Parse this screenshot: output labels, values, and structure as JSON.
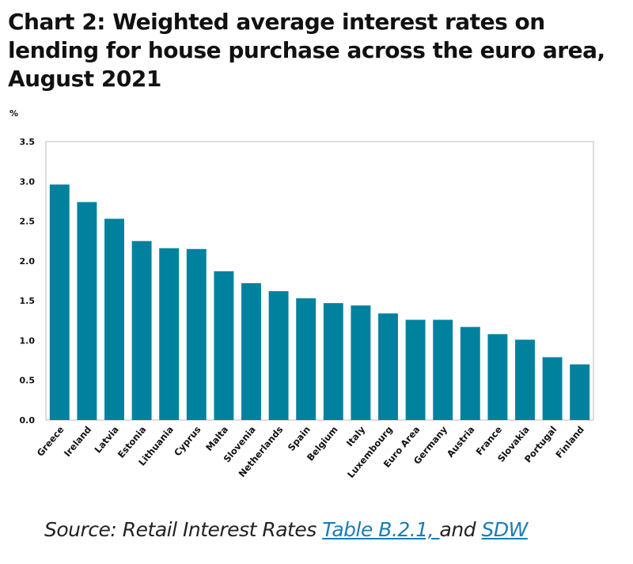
{
  "title": "Chart 2: Weighted average interest rates on lending for house purchase across the euro area, August 2021",
  "source": {
    "prefix": "Source: Retail Interest Rates ",
    "link1": "Table B.2.1, ",
    "middle": "and ",
    "link2": "SDW"
  },
  "chart_data": {
    "type": "bar",
    "title": "Chart 2: Weighted average interest rates on lending for house purchase across the euro area, August 2021",
    "ylabel": "%",
    "xlabel": "",
    "ylim": [
      0,
      3.5
    ],
    "yticks": [
      "0.0",
      "0.5",
      "1.0",
      "1.5",
      "2.0",
      "2.5",
      "3.0",
      "3.5"
    ],
    "grid": false,
    "bar_color": "#00829f",
    "categories": [
      "Greece",
      "Ireland",
      "Latvia",
      "Estonia",
      "Lithuania",
      "Cyprus",
      "Malta",
      "Slovenia",
      "Netherlands",
      "Spain",
      "Belgium",
      "Italy",
      "Luxembourg",
      "Euro Area",
      "Germany",
      "Austria",
      "France",
      "Slovakia",
      "Portugal",
      "Finland"
    ],
    "values": [
      2.96,
      2.74,
      2.53,
      2.25,
      2.16,
      2.15,
      1.87,
      1.72,
      1.62,
      1.53,
      1.47,
      1.44,
      1.34,
      1.26,
      1.26,
      1.17,
      1.08,
      1.01,
      0.79,
      0.7
    ]
  }
}
